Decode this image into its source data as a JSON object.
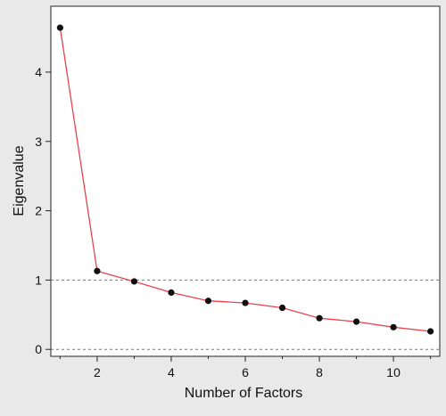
{
  "chart_data": {
    "type": "line",
    "xlabel": "Number of Factors",
    "ylabel": "Eigenvalue",
    "xlim": [
      0.75,
      11.25
    ],
    "ylim": [
      -0.1,
      4.95
    ],
    "x_ticks": [
      2,
      4,
      6,
      8,
      10
    ],
    "x_minor_ticks": [
      1,
      3,
      5,
      7,
      9,
      11
    ],
    "y_ticks": [
      0,
      1,
      2,
      3,
      4
    ],
    "reference_lines": [
      {
        "axis": "y",
        "value": 1,
        "style": "dashed"
      },
      {
        "axis": "y",
        "value": 0,
        "style": "dashed"
      }
    ],
    "grid": false,
    "series": [
      {
        "x": [
          1,
          2,
          3,
          4,
          5,
          6,
          7,
          8,
          9,
          10,
          11
        ],
        "values": [
          4.64,
          1.13,
          0.98,
          0.82,
          0.7,
          0.67,
          0.6,
          0.45,
          0.4,
          0.32,
          0.26
        ],
        "line_color": "#e8434d",
        "marker_color": "#111111"
      }
    ]
  },
  "colors": {
    "background": "#e9e9e9",
    "plot_background": "#ffffff",
    "axis": "#222222",
    "reference_line": "#777777"
  }
}
